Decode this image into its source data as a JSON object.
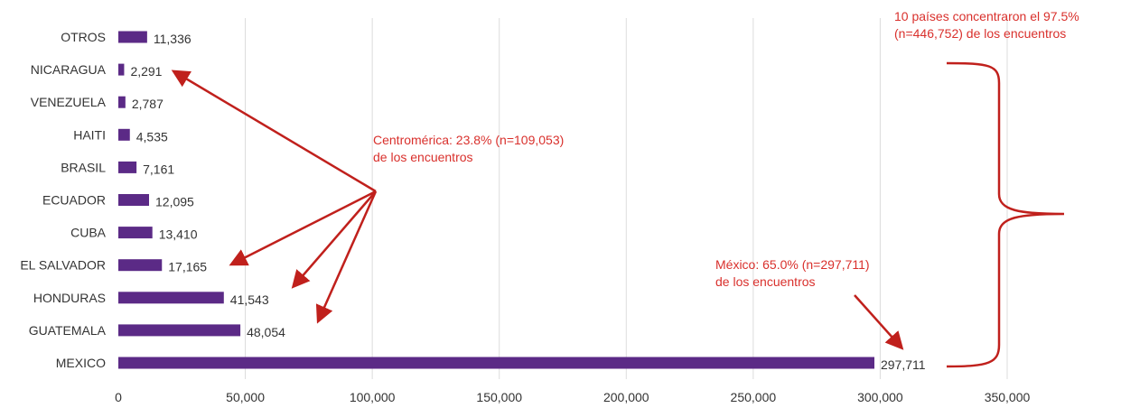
{
  "chart_data": {
    "type": "bar",
    "orientation": "horizontal",
    "categories": [
      "OTROS",
      "NICARAGUA",
      "VENEZUELA",
      "HAITI",
      "BRASIL",
      "ECUADOR",
      "CUBA",
      "EL SALVADOR",
      "HONDURAS",
      "GUATEMALA",
      "MEXICO"
    ],
    "values": [
      11336,
      2291,
      2787,
      4535,
      7161,
      12095,
      13410,
      17165,
      41543,
      48054,
      297711
    ],
    "value_labels": [
      "11,336",
      "2,291",
      "2,787",
      "4,535",
      "7,161",
      "12,095",
      "13,410",
      "17,165",
      "41,543",
      "48,054",
      "297,711"
    ],
    "xlim": [
      0,
      350000
    ],
    "xticks": [
      0,
      50000,
      100000,
      150000,
      200000,
      250000,
      300000,
      350000
    ],
    "xtick_labels": [
      "0",
      "50,000",
      "100,000",
      "150,000",
      "200,000",
      "250,000",
      "300,000",
      "350,000"
    ],
    "grid": "vertical",
    "legend": "none",
    "bar_color": "#5b2a86",
    "annotation_color": "#d9302c",
    "annotations": {
      "centroamerica": [
        "Centromérica: 23.8% (n=109,053)",
        "de los encuentros"
      ],
      "mexico": [
        "México: 65.0% (n=297,711)",
        "de los encuentros"
      ],
      "top10": [
        "10 países concentraron el 97.5%",
        "(n=446,752) de los encuentros"
      ]
    }
  }
}
